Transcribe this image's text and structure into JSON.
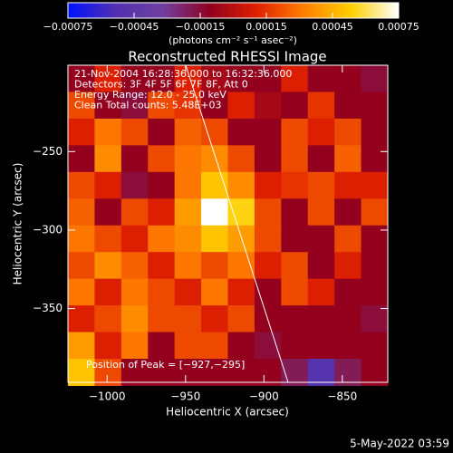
{
  "chart_data": {
    "type": "heatmap",
    "title": "Reconstructed RHESSI Image",
    "xlabel": "Heliocentric X (arcsec)",
    "ylabel": "Heliocentric Y (arcsec)",
    "colorbar_label": "(photons cm⁻² s⁻¹ asec⁻²)",
    "annotations": [
      "21-Nov-2004 16:28:36.000 to 16:32:36.000",
      "Detectors: 3F 4F 5F 6F 7F 8F, Att 0",
      "Energy Range: 12.0 - 25.0 keV",
      "Clean     Total counts: 5.48E+03"
    ],
    "peak_label": "Position of Peak = [−927,−295]",
    "footer": "5-May-2022 03:59",
    "colormap": [
      "#0010ff",
      "#5030b0",
      "#7040a0",
      "#900020",
      "#e02000",
      "#ff8000",
      "#ffd000",
      "#ffffff"
    ],
    "clim": [
      -0.00075,
      0.00075
    ],
    "cticks": [
      {
        "value": -0.00075,
        "label": "−0.00075"
      },
      {
        "value": -0.00045,
        "label": "−0.00045"
      },
      {
        "value": -0.00015,
        "label": "−0.00015"
      },
      0.00015,
      0.00045,
      0.00075
    ],
    "xlim": [
      -1025,
      -821
    ],
    "ylim": [
      -397,
      -195
    ],
    "xticks": [
      {
        "value": -1000,
        "label": "−1000"
      },
      {
        "value": -950,
        "label": "−950"
      },
      {
        "value": -900,
        "label": "−900"
      },
      {
        "value": -850,
        "label": "−850"
      }
    ],
    "yticks": [
      {
        "value": -250,
        "label": "−250"
      },
      {
        "value": -300,
        "label": "−300"
      },
      {
        "value": -350,
        "label": "−350"
      }
    ],
    "x": [
      -1016.5,
      -999.5,
      -982.5,
      -965.5,
      -948.5,
      -931.5,
      -914.5,
      -897.5,
      -880.5,
      -863.5,
      -846.5,
      -829.5
    ],
    "y": [
      -203.5,
      -220.5,
      -237.5,
      -254.5,
      -271.5,
      -288.5,
      -305.5,
      -322.5,
      -339.5,
      -356.5,
      -373.5,
      -390.5
    ],
    "values": [
      [
        -0.0001,
        0.0001,
        -0.0001,
        -0.0001,
        0.0001,
        -5e-05,
        -0.0001,
        -0.0001,
        0.0001,
        -0.0001,
        -0.0001,
        -0.00015
      ],
      [
        0.0002,
        -0.0001,
        -0.00015,
        0.0002,
        0.00015,
        -0.0001,
        0.0001,
        -5e-05,
        -0.0001,
        0.00015,
        -0.0001,
        -0.0001
      ],
      [
        0.0001,
        0.0003,
        0.0002,
        -0.0001,
        0.00025,
        0.0002,
        -0.0001,
        -0.0001,
        0.0002,
        0.0001,
        0.0002,
        -0.0001
      ],
      [
        -0.0001,
        0.00035,
        -0.0001,
        0.0002,
        0.0003,
        0.00035,
        0.0002,
        -0.0001,
        0.0002,
        -0.0001,
        0.00025,
        -0.0001
      ],
      [
        0.0002,
        0.0001,
        -0.00015,
        -0.0001,
        0.0003,
        0.0005,
        0.00035,
        0.0001,
        0.00015,
        0.0002,
        0.0001,
        0.0001
      ],
      [
        0.00025,
        -0.0001,
        0.0002,
        0.0001,
        0.0004,
        0.00075,
        0.00055,
        0.0002,
        -0.0001,
        0.0002,
        -0.0001,
        0.0002
      ],
      [
        0.0003,
        0.0002,
        0.0001,
        0.0003,
        0.00035,
        0.0005,
        0.0004,
        0.0002,
        -0.0001,
        -0.0001,
        0.0002,
        -0.0001
      ],
      [
        0.0002,
        0.00035,
        0.00025,
        0.0001,
        0.0003,
        0.0002,
        0.0003,
        0.0001,
        0.0002,
        -0.0001,
        0.0001,
        -0.0001
      ],
      [
        0.0003,
        0.0001,
        0.0003,
        0.0002,
        0.0001,
        0.0003,
        0.0001,
        -0.0001,
        0.0002,
        0.0001,
        -0.0001,
        -0.0001
      ],
      [
        0.0001,
        0.0002,
        0.00035,
        0.0002,
        0.0002,
        0.0001,
        0.0002,
        -0.0001,
        -0.0001,
        -0.0001,
        -0.0001,
        -0.00015
      ],
      [
        0.0004,
        0.0001,
        0.0003,
        -0.0001,
        0.0002,
        0.0002,
        -0.0001,
        -0.00015,
        -0.0001,
        -0.0001,
        -0.0001,
        -0.0001
      ],
      [
        0.0005,
        0.0002,
        -0.0001,
        -0.0001,
        -0.0001,
        -0.0001,
        -0.0001,
        -0.0001,
        -0.0002,
        -0.0005,
        -0.0002,
        -0.0001
      ]
    ]
  }
}
